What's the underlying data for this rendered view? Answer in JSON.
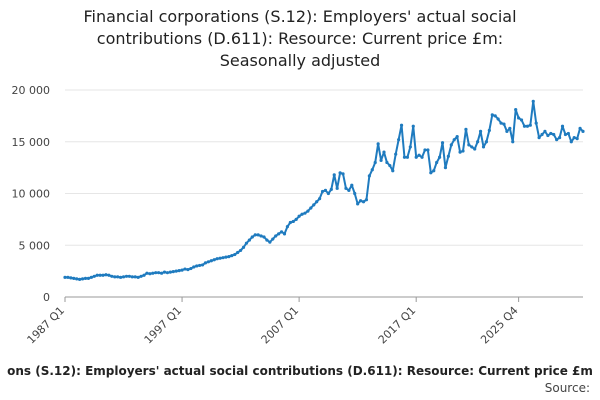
{
  "title_lines": [
    "Financial corporations (S.12): Employers' actual social",
    "contributions (D.611): Resource: Current price £m:",
    "Seasonally adjusted"
  ],
  "footer_title": "ons (S.12): Employers' actual social contributions (D.611): Resource: Current price £m",
  "footer_source": "Source:",
  "colors": {
    "series": "#1f7bbf",
    "grid": "#e6e6e6",
    "axis": "#999999"
  },
  "chart_data": {
    "type": "line",
    "title": "Financial corporations (S.12): Employers' actual social contributions (D.611): Resource: Current price £m: Seasonally adjusted",
    "xlabel": "",
    "ylabel": "",
    "ylim": [
      0,
      20000
    ],
    "y_ticks": [
      0,
      5000,
      10000,
      15000,
      20000
    ],
    "y_tick_labels": [
      "0",
      "5 000",
      "10 000",
      "15 000",
      "20 000"
    ],
    "x_tick_labels": [
      "1987 Q1",
      "1997 Q1",
      "2007 Q1",
      "2017 Q1",
      "2025 Q4"
    ],
    "x_range": [
      "1987 Q1",
      "2025 Q4"
    ],
    "grid": true,
    "series": [
      {
        "start": "1987 Q1",
        "values": [
          1900,
          1900,
          1850,
          1800,
          1750,
          1700,
          1750,
          1800,
          1800,
          1900,
          2000,
          2100,
          2100,
          2100,
          2150,
          2100,
          2000,
          1950,
          1950,
          1900,
          1950,
          2000,
          2000,
          1950,
          1950,
          1900,
          2000,
          2100,
          2300,
          2250,
          2300,
          2350,
          2350,
          2300,
          2400,
          2350,
          2400,
          2450,
          2500,
          2550,
          2600,
          2700,
          2650,
          2750,
          2900,
          3000,
          3050,
          3100,
          3300,
          3400,
          3500,
          3600,
          3700,
          3750,
          3800,
          3850,
          3900,
          4000,
          4100,
          4300,
          4500,
          4800,
          5200,
          5500,
          5800,
          6000,
          6000,
          5900,
          5800,
          5500,
          5300,
          5600,
          5900,
          6100,
          6300,
          6100,
          6800,
          7200,
          7300,
          7500,
          7800,
          8000,
          8100,
          8300,
          8600,
          8900,
          9200,
          9500,
          10200,
          10300,
          10000,
          10400,
          11800,
          10500,
          12000,
          11900,
          10500,
          10300,
          10800,
          10000,
          9000,
          9300,
          9200,
          9400,
          11700,
          12300,
          13000,
          14800,
          13200,
          14000,
          13000,
          12700,
          12200,
          13800,
          15200,
          16600,
          13500,
          13500,
          14500,
          16500,
          13500,
          13700,
          13500,
          14200,
          14200,
          12000,
          12200,
          13000,
          13500,
          14900,
          12500,
          13600,
          14700,
          15200,
          15500,
          14000,
          14100,
          16200,
          14700,
          14500,
          14300,
          15000,
          16000,
          14500,
          15000,
          16100,
          17600,
          17500,
          17200,
          16800,
          16700,
          16000,
          16300,
          15000,
          18100,
          17300,
          17100,
          16500,
          16500,
          16600,
          18900,
          16800,
          15400,
          15700,
          16000,
          15600,
          15800,
          15700,
          15200,
          15400,
          16500,
          15700,
          15800,
          15000,
          15400,
          15300,
          16300,
          16000
        ]
      }
    ]
  }
}
